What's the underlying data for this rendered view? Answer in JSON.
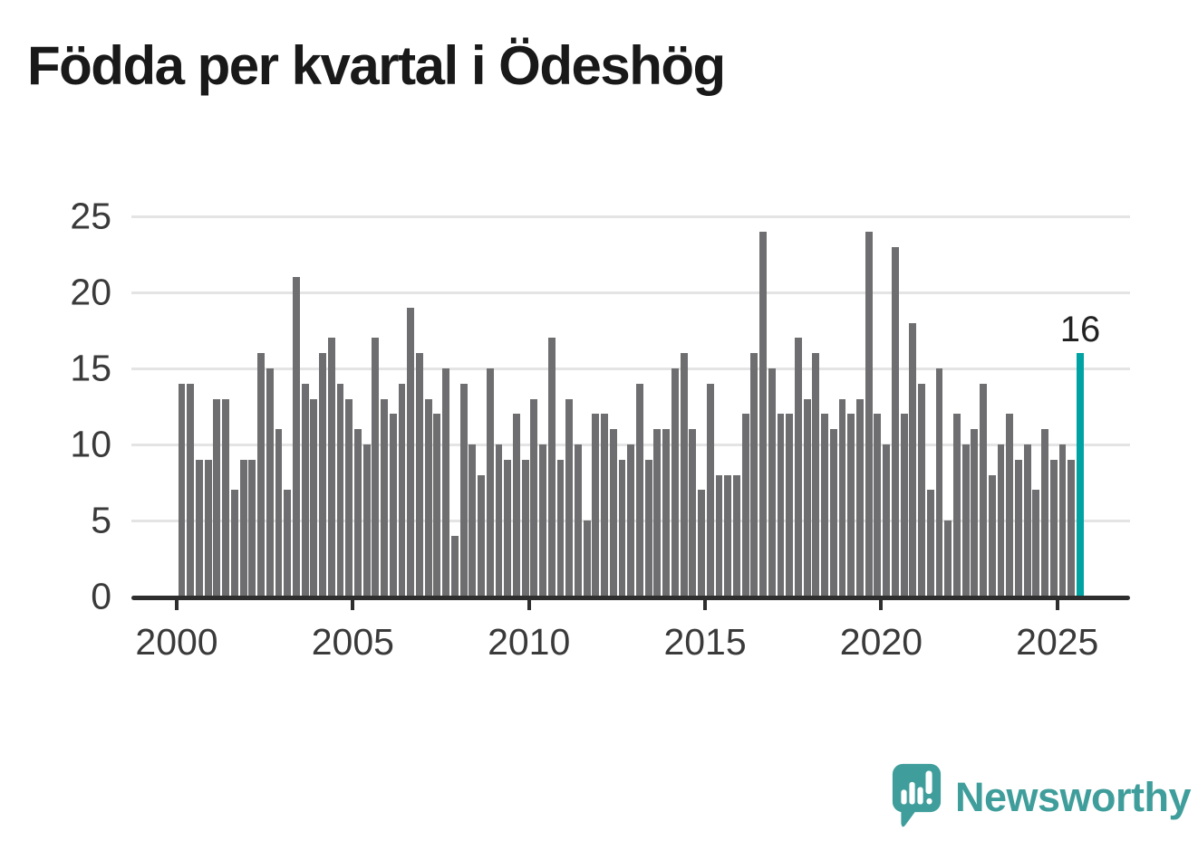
{
  "title": "Födda per kvartal i Ödeshög",
  "annotation": {
    "last_value_label": "16"
  },
  "logo": {
    "text": "Newsworthy"
  },
  "colors": {
    "bar": "#6e6e70",
    "highlight": "#00a3a3",
    "gridline": "#e4e4e4",
    "axis": "#2e2e2e",
    "tick_label": "#3a3a3a",
    "title": "#191919",
    "logo": "#3f9e9b"
  },
  "chart_data": {
    "type": "bar",
    "title": "Födda per kvartal i Ödeshög",
    "x_unit": "quarter",
    "start_year": 2000,
    "start_quarter": 1,
    "values": [
      14,
      14,
      9,
      9,
      13,
      13,
      7,
      9,
      9,
      16,
      15,
      11,
      7,
      21,
      14,
      13,
      16,
      17,
      14,
      13,
      11,
      10,
      17,
      13,
      12,
      14,
      19,
      16,
      13,
      12,
      15,
      4,
      14,
      10,
      8,
      15,
      10,
      9,
      12,
      9,
      13,
      10,
      17,
      9,
      13,
      10,
      5,
      12,
      12,
      11,
      9,
      10,
      14,
      9,
      11,
      11,
      15,
      16,
      11,
      7,
      14,
      8,
      8,
      8,
      12,
      16,
      24,
      15,
      12,
      12,
      17,
      13,
      16,
      12,
      11,
      13,
      12,
      13,
      24,
      12,
      10,
      23,
      12,
      18,
      14,
      7,
      15,
      5,
      12,
      10,
      11,
      14,
      8,
      10,
      12,
      9,
      10,
      7,
      11,
      9,
      10,
      9,
      16
    ],
    "highlight_last_bar": true,
    "last_bar_value": 16,
    "x_tick_labels": [
      "2000",
      "2005",
      "2010",
      "2015",
      "2020",
      "2025"
    ],
    "y_ticks": [
      0,
      5,
      10,
      15,
      20,
      25
    ],
    "ylim": [
      0,
      25
    ],
    "grid": "horizontal",
    "legend": "none"
  }
}
